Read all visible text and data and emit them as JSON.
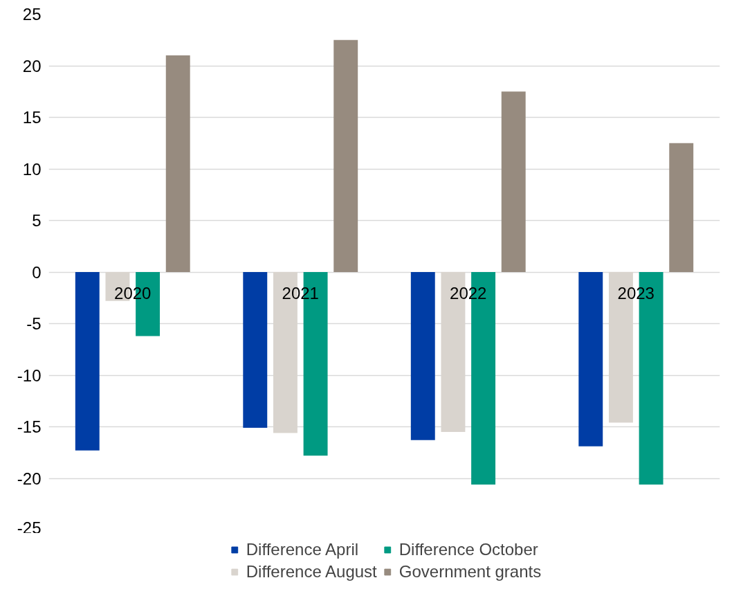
{
  "chart_data": {
    "type": "bar",
    "categories": [
      "2020",
      "2021",
      "2022",
      "2023"
    ],
    "series": [
      {
        "name": "Difference April",
        "color": "#003da5",
        "values": [
          -17.3,
          -15.1,
          -16.3,
          -16.9
        ]
      },
      {
        "name": "Difference August",
        "color": "#d9d4ce",
        "values": [
          -2.8,
          -15.6,
          -15.5,
          -14.6
        ]
      },
      {
        "name": "Difference October",
        "color": "#009a82",
        "values": [
          -6.2,
          -17.8,
          -20.6,
          -20.6
        ]
      },
      {
        "name": "Government grants",
        "color": "#978b7f",
        "values": [
          21.0,
          22.5,
          17.5,
          12.5
        ]
      }
    ],
    "ylim": [
      -25,
      25
    ],
    "yticks": [
      -25,
      -20,
      -15,
      -10,
      -5,
      0,
      5,
      10,
      15,
      20,
      25
    ],
    "grid": "y",
    "legend": "bottom"
  }
}
